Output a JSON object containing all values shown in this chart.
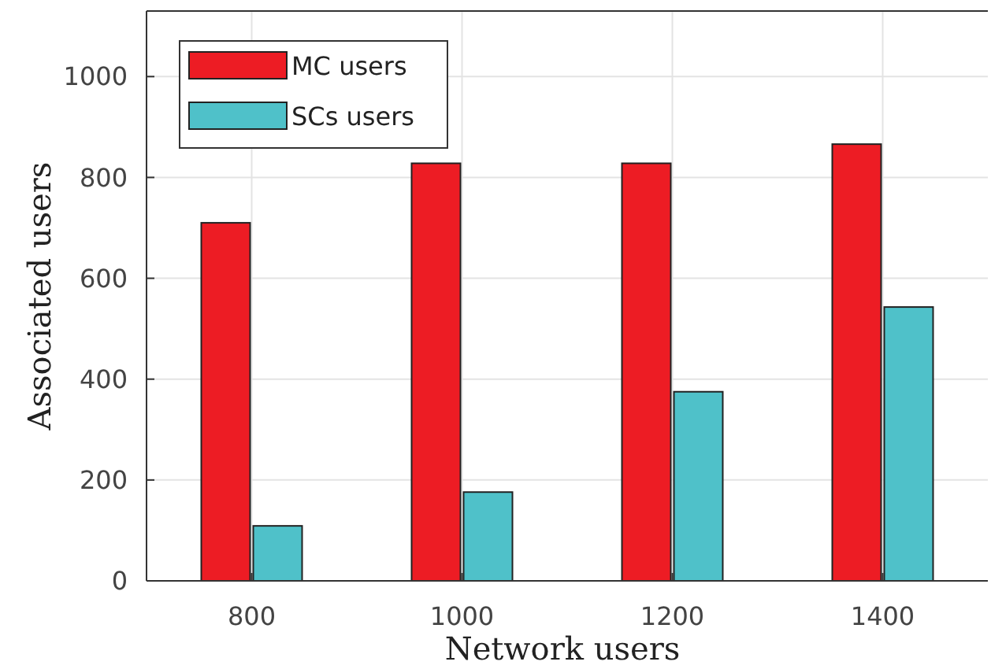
{
  "chart_data": {
    "type": "bar",
    "xlabel": "Network users",
    "ylabel": "Associated users",
    "categories": [
      "800",
      "1000",
      "1200",
      "1400"
    ],
    "series": [
      {
        "name": "MC users",
        "color": "#ed1c24",
        "values": [
          710,
          828,
          828,
          866
        ]
      },
      {
        "name": "SCs users",
        "color": "#4fc1c9",
        "values": [
          109,
          176,
          375,
          543
        ]
      }
    ],
    "ylim": [
      0,
      1130
    ],
    "yticks": [
      0,
      200,
      400,
      600,
      800,
      1000
    ],
    "grid": true,
    "legend": "top left"
  }
}
